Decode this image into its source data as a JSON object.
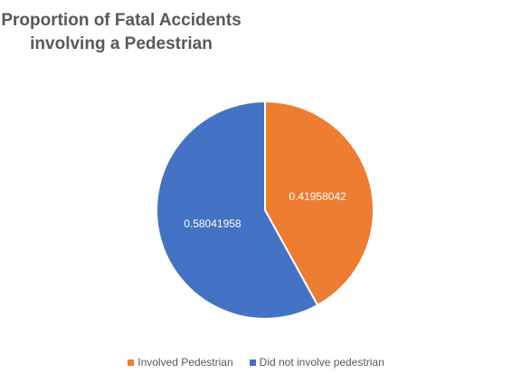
{
  "chart_data": {
    "type": "pie",
    "title": [
      "Proportion of Fatal Accidents",
      "involving a Pedestrian"
    ],
    "categories": [
      "Involved Pedestrian",
      "Did not involve pedestrian"
    ],
    "values": [
      0.41958042,
      0.58041958
    ],
    "data_labels": [
      "0.41958042",
      "0.58041958"
    ],
    "colors": [
      "#ED7D31",
      "#4472C4"
    ],
    "legend_position": "bottom",
    "start_angle": "12 o'clock, clockwise"
  }
}
